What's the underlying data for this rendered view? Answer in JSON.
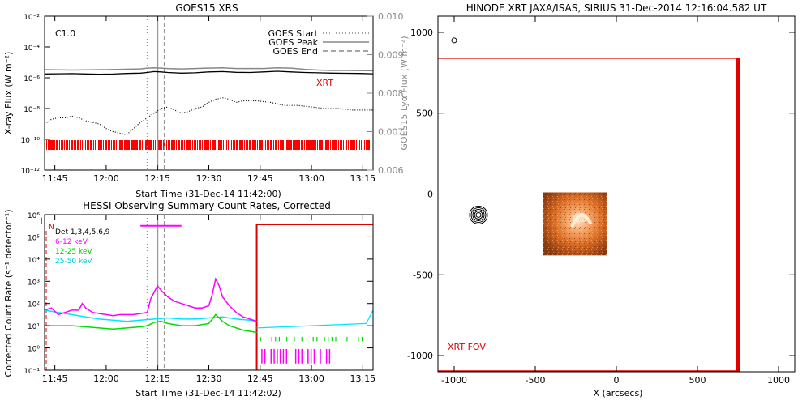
{
  "chart_data": [
    {
      "id": "goes",
      "type": "line",
      "title": "GOES15 XRS",
      "xlabel": "Start Time (31-Dec-14 11:42:00)",
      "ylabel_left": "X-ray Flux (W m⁻²)",
      "ylabel_right": "GOES15 Lyα Flux (W m⁻²)",
      "x_ticks": [
        "11:45",
        "12:00",
        "12:15",
        "12:30",
        "12:45",
        "13:00",
        "13:15"
      ],
      "x_tick_minutes": [
        225,
        240,
        255,
        270,
        285,
        300,
        315
      ],
      "xlim_minutes": [
        222,
        318
      ],
      "y_ticks": [
        "10⁻²",
        "10⁻⁴",
        "10⁻⁶",
        "10⁻⁸",
        "10⁻¹⁰",
        "10⁻¹²"
      ],
      "y_tick_exp": [
        -2,
        -4,
        -6,
        -8,
        -10,
        -12
      ],
      "ylim_exp": [
        -12,
        -2
      ],
      "y2_ticks": [
        "0.010",
        "0.009",
        "0.008",
        "0.007",
        "0.006"
      ],
      "y2_values": [
        0.01,
        0.009,
        0.008,
        0.007,
        0.006
      ],
      "y2lim": [
        0.006,
        0.01
      ],
      "class_label": "C1.0",
      "xrt_label": "XRT",
      "legend": [
        "GOES Start",
        "GOES Peak",
        "GOES End"
      ],
      "event_lines_minutes": {
        "start": 252,
        "peak": 255,
        "end": 257
      },
      "series": [
        {
          "name": "GOES long (1-8 Å)",
          "color": "#000000",
          "x": [
            222,
            226,
            230,
            234,
            238,
            242,
            246,
            250,
            252,
            254,
            256,
            258,
            262,
            266,
            270,
            274,
            278,
            282,
            286,
            290,
            294,
            298,
            302,
            306,
            310,
            314,
            318
          ],
          "y_exp": [
            -5.75,
            -5.74,
            -5.73,
            -5.75,
            -5.77,
            -5.76,
            -5.72,
            -5.7,
            -5.66,
            -5.6,
            -5.62,
            -5.66,
            -5.7,
            -5.68,
            -5.62,
            -5.6,
            -5.65,
            -5.66,
            -5.62,
            -5.58,
            -5.62,
            -5.66,
            -5.68,
            -5.7,
            -5.71,
            -5.72,
            -5.74
          ]
        },
        {
          "name": "GOES short (0.5-4 Å)",
          "color": "#000000",
          "dashed": true,
          "x": [
            222,
            224,
            226,
            228,
            230,
            232,
            234,
            236,
            238,
            240,
            242,
            244,
            246,
            248,
            250,
            252,
            254,
            256,
            258,
            260,
            262,
            264,
            266,
            268,
            270,
            272,
            274,
            276,
            278,
            280,
            284,
            288,
            292,
            296,
            300,
            304,
            308,
            312,
            318
          ],
          "y_exp": [
            -9.0,
            -8.7,
            -8.6,
            -8.6,
            -8.5,
            -8.6,
            -8.8,
            -8.9,
            -9.0,
            -9.3,
            -9.5,
            -9.6,
            -9.7,
            -9.3,
            -8.9,
            -8.6,
            -8.3,
            -8.0,
            -7.9,
            -8.1,
            -8.3,
            -8.2,
            -8.0,
            -7.9,
            -7.6,
            -7.4,
            -7.3,
            -7.4,
            -7.6,
            -7.5,
            -7.5,
            -7.6,
            -7.8,
            -7.8,
            -7.9,
            -8.0,
            -8.0,
            -8.1,
            -8.1
          ]
        },
        {
          "name": "Lyα",
          "color": "#888888",
          "x": [
            222,
            230,
            240,
            250,
            252,
            254,
            256,
            258,
            262,
            266,
            270,
            274,
            278,
            282,
            286,
            290,
            294,
            298,
            302,
            306,
            310,
            318
          ],
          "y": [
            0.00861,
            0.0086,
            0.00861,
            0.00863,
            0.00865,
            0.00866,
            0.00865,
            0.00864,
            0.00863,
            0.00864,
            0.00865,
            0.00866,
            0.00864,
            0.00864,
            0.00864,
            0.00866,
            0.00865,
            0.00862,
            0.0086,
            0.00859,
            0.00859,
            0.00858
          ]
        }
      ]
    },
    {
      "id": "hessi",
      "type": "line",
      "title": "HESSI Observing Summary Count Rates, Corrected",
      "xlabel": "Start Time (31-Dec-14 11:42:02)",
      "ylabel": "Corrected Count Rate (s⁻¹ detector⁻¹)",
      "x_ticks": [
        "11:45",
        "12:00",
        "12:15",
        "12:30",
        "12:45",
        "13:00",
        "13:15"
      ],
      "x_tick_minutes": [
        225,
        240,
        255,
        270,
        285,
        300,
        315
      ],
      "xlim_minutes": [
        222,
        318
      ],
      "y_ticks": [
        "10⁻¹",
        "10⁰",
        "10¹",
        "10²",
        "10³",
        "10⁴",
        "10⁵",
        "10⁶"
      ],
      "y_tick_exp": [
        -1,
        0,
        1,
        2,
        3,
        4,
        5,
        6
      ],
      "ylim_exp": [
        -1,
        6
      ],
      "legend": [
        {
          "label": "Det 1,3,4,5,6,9",
          "color": "#000000"
        },
        {
          "label": "6-12 keV",
          "color": "#ff00ff"
        },
        {
          "label": "12-25 keV",
          "color": "#00dd00"
        },
        {
          "label": "25-50 keV",
          "color": "#00e5ff"
        }
      ],
      "flags": [
        "J",
        "N"
      ],
      "event_lines_minutes": {
        "start": 252,
        "peak": 255,
        "end": 257
      },
      "night_start_minutes": 284,
      "attenuator_minutes": [
        [
          250,
          262
        ]
      ],
      "series": [
        {
          "name": "6-12 keV",
          "color": "#ff00ff",
          "x": [
            222,
            224,
            226,
            228,
            230,
            232,
            233,
            234,
            236,
            238,
            240,
            242,
            244,
            246,
            248,
            250,
            252,
            253,
            254,
            255,
            256,
            258,
            260,
            262,
            264,
            266,
            268,
            270,
            271,
            272,
            273,
            274,
            276,
            278,
            280,
            282,
            284
          ],
          "y_exp": [
            1.7,
            1.8,
            1.5,
            1.6,
            1.7,
            1.7,
            2.0,
            1.8,
            1.6,
            1.55,
            1.5,
            1.45,
            1.5,
            1.5,
            1.5,
            1.55,
            1.6,
            2.2,
            2.5,
            2.8,
            2.6,
            2.3,
            2.1,
            2.0,
            1.9,
            1.8,
            1.8,
            1.9,
            2.4,
            3.1,
            2.8,
            2.3,
            1.9,
            1.6,
            1.4,
            1.3,
            1.2
          ]
        },
        {
          "name": "12-25 keV",
          "color": "#00dd00",
          "x": [
            222,
            226,
            230,
            234,
            238,
            242,
            246,
            250,
            252,
            254,
            256,
            258,
            262,
            266,
            270,
            272,
            274,
            276,
            280,
            284
          ],
          "y_exp": [
            1.0,
            1.0,
            1.0,
            0.95,
            0.9,
            0.85,
            0.9,
            0.95,
            1.0,
            1.15,
            1.2,
            1.1,
            1.0,
            1.0,
            1.1,
            1.5,
            1.2,
            1.0,
            0.8,
            0.7
          ]
        },
        {
          "name": "25-50 keV",
          "color": "#00e5ff",
          "x": [
            222,
            226,
            230,
            234,
            238,
            242,
            246,
            250,
            254,
            258,
            262,
            266,
            270,
            274,
            278,
            282,
            284
          ],
          "y_exp": [
            1.7,
            1.6,
            1.5,
            1.4,
            1.3,
            1.25,
            1.2,
            1.25,
            1.3,
            1.35,
            1.3,
            1.3,
            1.35,
            1.4,
            1.3,
            1.25,
            1.2
          ]
        }
      ]
    },
    {
      "id": "xrt",
      "type": "scatter",
      "title": "HINODE XRT JAXA/ISAS, SIRIUS 31-Dec-2014 12:16:04.582 UT",
      "xlabel": "X (arcsecs)",
      "ylabel": "",
      "x_ticks": [
        -1000,
        -500,
        0,
        500,
        1000
      ],
      "y_ticks": [
        1000,
        500,
        0,
        -500,
        -1000
      ],
      "xlim": [
        -1100,
        1100
      ],
      "ylim": [
        -1100,
        1100
      ],
      "fov_label": "XRT FOV",
      "fov_box": {
        "x0": -1100,
        "x1": 750,
        "y0": -1100,
        "y1": 840
      },
      "image_box": {
        "x0": -450,
        "x1": -60,
        "y0": -380,
        "y1": 10
      },
      "contour_center": [
        -850,
        -130
      ],
      "small_circle_center": [
        -1000,
        950
      ]
    }
  ]
}
